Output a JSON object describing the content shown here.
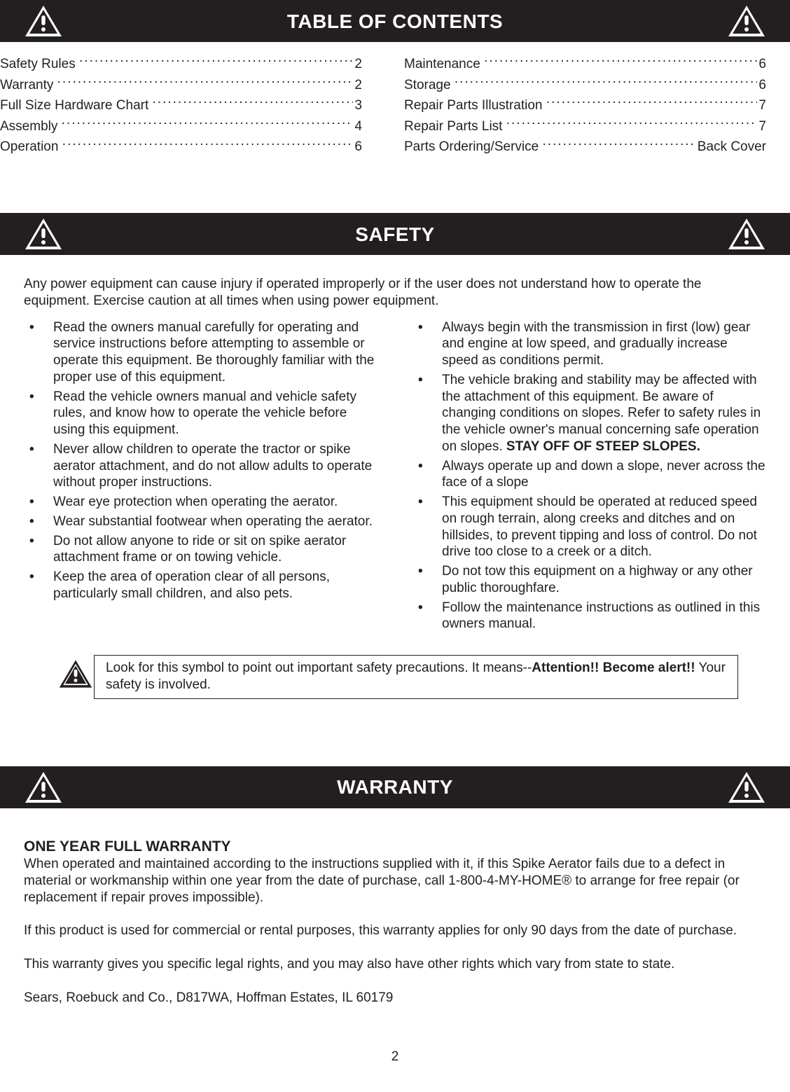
{
  "colors": {
    "bar_bg": "#231f20",
    "bar_fg": "#ffffff",
    "text": "#231f20",
    "page_bg": "#ffffff"
  },
  "page_number": "2",
  "headers": {
    "toc": "TABLE OF CONTENTS",
    "safety": "SAFETY",
    "warranty": "WARRANTY"
  },
  "toc": {
    "left": [
      {
        "label": "Safety Rules",
        "page": "2"
      },
      {
        "label": "Warranty",
        "page": "2"
      },
      {
        "label": "Full Size Hardware Chart",
        "page": "3"
      },
      {
        "label": "Assembly",
        "page": "4"
      },
      {
        "label": "Operation",
        "page": "6"
      }
    ],
    "right": [
      {
        "label": "Maintenance",
        "page": "6"
      },
      {
        "label": "Storage",
        "page": "6"
      },
      {
        "label": "Repair Parts Illustration",
        "page": "7"
      },
      {
        "label": "Repair Parts List",
        "page": "7"
      },
      {
        "label": "Parts Ordering/Service",
        "page": "Back Cover"
      }
    ]
  },
  "safety": {
    "intro": "Any power equipment can cause injury if operated improperly or if the user does not understand how to operate the equipment. Exercise caution at all times when using power equipment.",
    "left_items": [
      "Read the owners manual carefully for operating and service instructions before attempting to assemble or operate this equipment. Be thoroughly familiar with the proper use of this equipment.",
      "Read the vehicle owners manual and vehicle safety rules, and know how to operate the vehicle before using this equipment.",
      "Never allow children to operate the tractor or spike aerator attachment, and do not allow adults to operate without proper instructions.",
      "Wear eye protection when operating the aerator.",
      "Wear substantial footwear when operating the aerator.",
      "Do not allow anyone to ride or sit on spike aerator attachment frame or on towing vehicle.",
      "Keep the area of operation clear of all persons, particularly small children, and also pets."
    ],
    "right_items": [
      {
        "text": "Always begin with the transmission in first (low) gear and engine at low speed, and gradually increase speed as conditions permit."
      },
      {
        "text_pre": "The vehicle braking and stability may be affected with the attachment of this equipment. Be aware of changing conditions on slopes. Refer to safety rules in the vehicle owner's manual concerning safe operation on slopes. ",
        "bold": "STAY OFF OF STEEP SLOPES."
      },
      {
        "text": "Always operate up and down a slope, never across the face of a slope"
      },
      {
        "text": "This equipment should be operated at reduced speed on rough terrain, along creeks and ditches and on hillsides, to prevent tipping and loss of control. Do not drive too close to a creek or a ditch."
      },
      {
        "text": "Do not tow this equipment on a highway or any other public thoroughfare."
      },
      {
        "text": "Follow the maintenance instructions as outlined in this owners manual."
      }
    ],
    "alert_pre": "Look for this symbol to point out important safety precautions. It means--",
    "alert_bold": "Attention!!  Become alert!!",
    "alert_post": "  Your safety is involved."
  },
  "warranty": {
    "heading": "ONE YEAR FULL WARRANTY",
    "p1": "When operated and maintained according to the instructions supplied with it, if this Spike Aerator fails due to a defect in material or workmanship within one year from the date of purchase, call 1-800-4-MY-HOME® to arrange for free repair (or replacement if repair proves impossible).",
    "p2": "If this product is used for commercial or rental purposes, this warranty applies for only 90 days from the date of purchase.",
    "p3": "This warranty gives you specific legal rights, and you may also have other rights which vary from state to state.",
    "p4": "Sears, Roebuck and Co., D817WA, Hoffman Estates, IL 60179"
  }
}
